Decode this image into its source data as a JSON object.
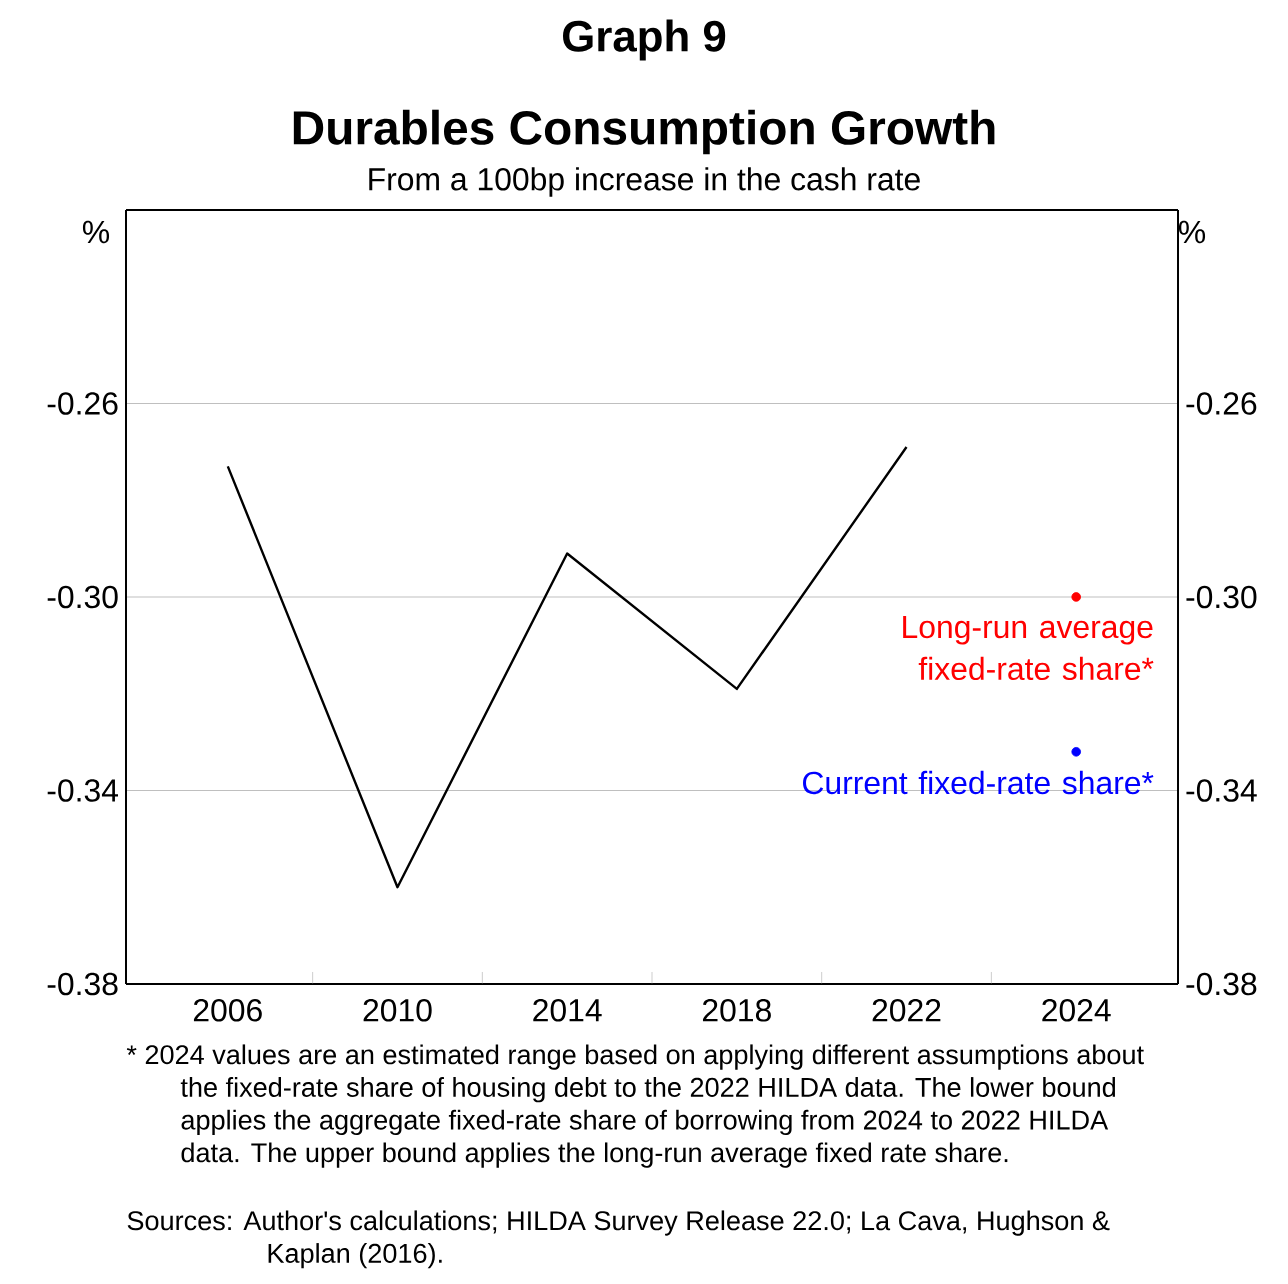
{
  "chart_data": {
    "type": "line",
    "title": "Durables Consumption Growth",
    "subtitle": "From a 100bp increase in the cash rate",
    "ylabel": "%",
    "y2label": "%",
    "categories": [
      "2006",
      "2010",
      "2014",
      "2018",
      "2022",
      "2024"
    ],
    "series": [
      {
        "type": "line",
        "color": "#000000",
        "values": [
          -0.273,
          -0.36,
          -0.291,
          -0.319,
          -0.269,
          null
        ]
      },
      {
        "type": "scatter",
        "name": "Long-run average fixed-rate share*",
        "color": "#ff0000",
        "marker": "circle",
        "values": [
          null,
          null,
          null,
          null,
          null,
          -0.3
        ]
      },
      {
        "type": "scatter",
        "name": "Current fixed-rate share*",
        "color": "#0000ff",
        "marker": "circle",
        "values": [
          null,
          null,
          null,
          null,
          null,
          -0.332
        ]
      }
    ],
    "ylim": [
      -0.38,
      -0.22
    ],
    "yticks": [
      -0.38,
      -0.34,
      {
        "value": -0.3,
        "label": "-0.30"
      },
      -0.26
    ],
    "y2lim": [
      -0.38,
      -0.22
    ],
    "y2ticks": [
      -0.38,
      -0.34,
      {
        "value": -0.3,
        "label": "-0.30"
      },
      -0.26
    ],
    "grid": "y",
    "annotations": [
      "Graph 9",
      "* 2024 values are an estimated range based on applying different assumptions about the fixed-rate share of housing debt to the 2022 HILDA data. The lower bound applies the aggregate fixed-rate share of borrowing from 2024 to 2022 HILDA data. The upper bound applies the long-run average fixed rate share.",
      "Sources: Author's calculations; HILDA Survey Release 22.0; La Cava, Hughson & Kaplan (2016)."
    ]
  }
}
